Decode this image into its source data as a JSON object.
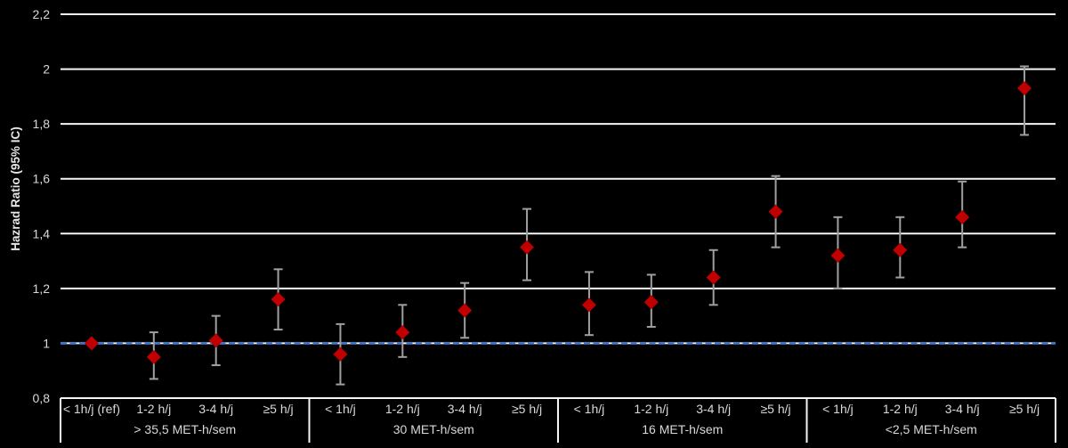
{
  "chart_data": {
    "type": "scatter",
    "subtype": "forest-plot-errorbars",
    "title": "",
    "ylabel": "Hazrad Ratio (95% IC)",
    "xlabel": "",
    "ylim": [
      0.8,
      2.2
    ],
    "ytick_step": 0.2,
    "ytick_labels": [
      "0,8",
      "1",
      "1,2",
      "1,4",
      "1,6",
      "1,8",
      "2",
      "2,2"
    ],
    "grid": true,
    "legend_position": "none",
    "reference_line_y": 1.0,
    "marker_shape": "diamond",
    "groups": [
      {
        "label": "> 35,5 MET-h/sem",
        "points": [
          {
            "category": "< 1h/j (ref)",
            "hr": 1.0,
            "ci_low": null,
            "ci_high": null
          },
          {
            "category": "1-2 h/j",
            "hr": 0.95,
            "ci_low": 0.87,
            "ci_high": 1.04
          },
          {
            "category": "3-4 h/j",
            "hr": 1.01,
            "ci_low": 0.92,
            "ci_high": 1.1
          },
          {
            "category": "≥5 h/j",
            "hr": 1.16,
            "ci_low": 1.05,
            "ci_high": 1.27
          }
        ]
      },
      {
        "label": "30 MET-h/sem",
        "points": [
          {
            "category": "< 1h/j",
            "hr": 0.96,
            "ci_low": 0.85,
            "ci_high": 1.07
          },
          {
            "category": "1-2 h/j",
            "hr": 1.04,
            "ci_low": 0.95,
            "ci_high": 1.14
          },
          {
            "category": "3-4 h/j",
            "hr": 1.12,
            "ci_low": 1.02,
            "ci_high": 1.22
          },
          {
            "category": "≥5 h/j",
            "hr": 1.35,
            "ci_low": 1.23,
            "ci_high": 1.49
          }
        ]
      },
      {
        "label": "16 MET-h/sem",
        "points": [
          {
            "category": "< 1h/j",
            "hr": 1.14,
            "ci_low": 1.03,
            "ci_high": 1.26
          },
          {
            "category": "1-2 h/j",
            "hr": 1.15,
            "ci_low": 1.06,
            "ci_high": 1.25
          },
          {
            "category": "3-4 h/j",
            "hr": 1.24,
            "ci_low": 1.14,
            "ci_high": 1.34
          },
          {
            "category": "≥5 h/j",
            "hr": 1.48,
            "ci_low": 1.35,
            "ci_high": 1.61
          }
        ]
      },
      {
        "label": "<2,5 MET-h/sem",
        "points": [
          {
            "category": "< 1h/j",
            "hr": 1.32,
            "ci_low": 1.2,
            "ci_high": 1.46
          },
          {
            "category": "1-2 h/j",
            "hr": 1.34,
            "ci_low": 1.24,
            "ci_high": 1.46
          },
          {
            "category": "3-4 h/j",
            "hr": 1.46,
            "ci_low": 1.35,
            "ci_high": 1.59
          },
          {
            "category": "≥5 h/j",
            "hr": 1.93,
            "ci_low": 1.76,
            "ci_high": 2.01
          }
        ]
      }
    ],
    "colors": {
      "background": "#000000",
      "gridline": "#F5F5F5",
      "axis_box": "#F5F5F5",
      "marker": "#C00000",
      "error_bar": "#A0A0A0",
      "reference_line": "#4472C4",
      "tick_text": "#D9D9D9",
      "label_text": "#D9D9D9",
      "axis_title_text": "#E6E6E6"
    }
  }
}
